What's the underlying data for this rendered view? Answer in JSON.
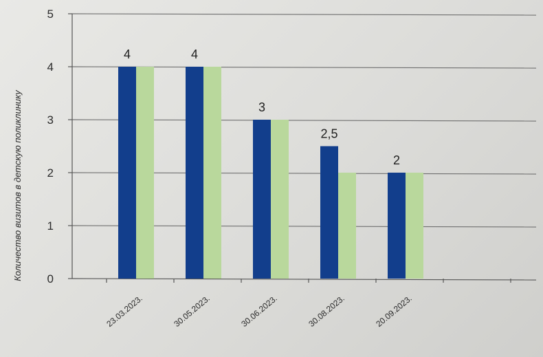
{
  "chart_data": {
    "type": "bar",
    "title": "",
    "xlabel": "",
    "ylabel": "Количество визитов в детскую поликлинику",
    "categories": [
      "23.03.2023.",
      "30.05.2023.",
      "30.06.2023.",
      "30.08.2023.",
      "20.09.2023."
    ],
    "series": [
      {
        "color": "#123e8c",
        "values": [
          4,
          4,
          3,
          2.5,
          2
        ],
        "data_labels": [
          "4",
          "4",
          "3",
          "2,5",
          "2"
        ]
      },
      {
        "color": "#b9d89c",
        "values": [
          4,
          4,
          3,
          2,
          2
        ]
      }
    ],
    "ylim": [
      0,
      5
    ],
    "yticks": [
      0,
      1,
      2,
      3,
      4,
      5
    ],
    "grid": true,
    "legend": "none"
  }
}
